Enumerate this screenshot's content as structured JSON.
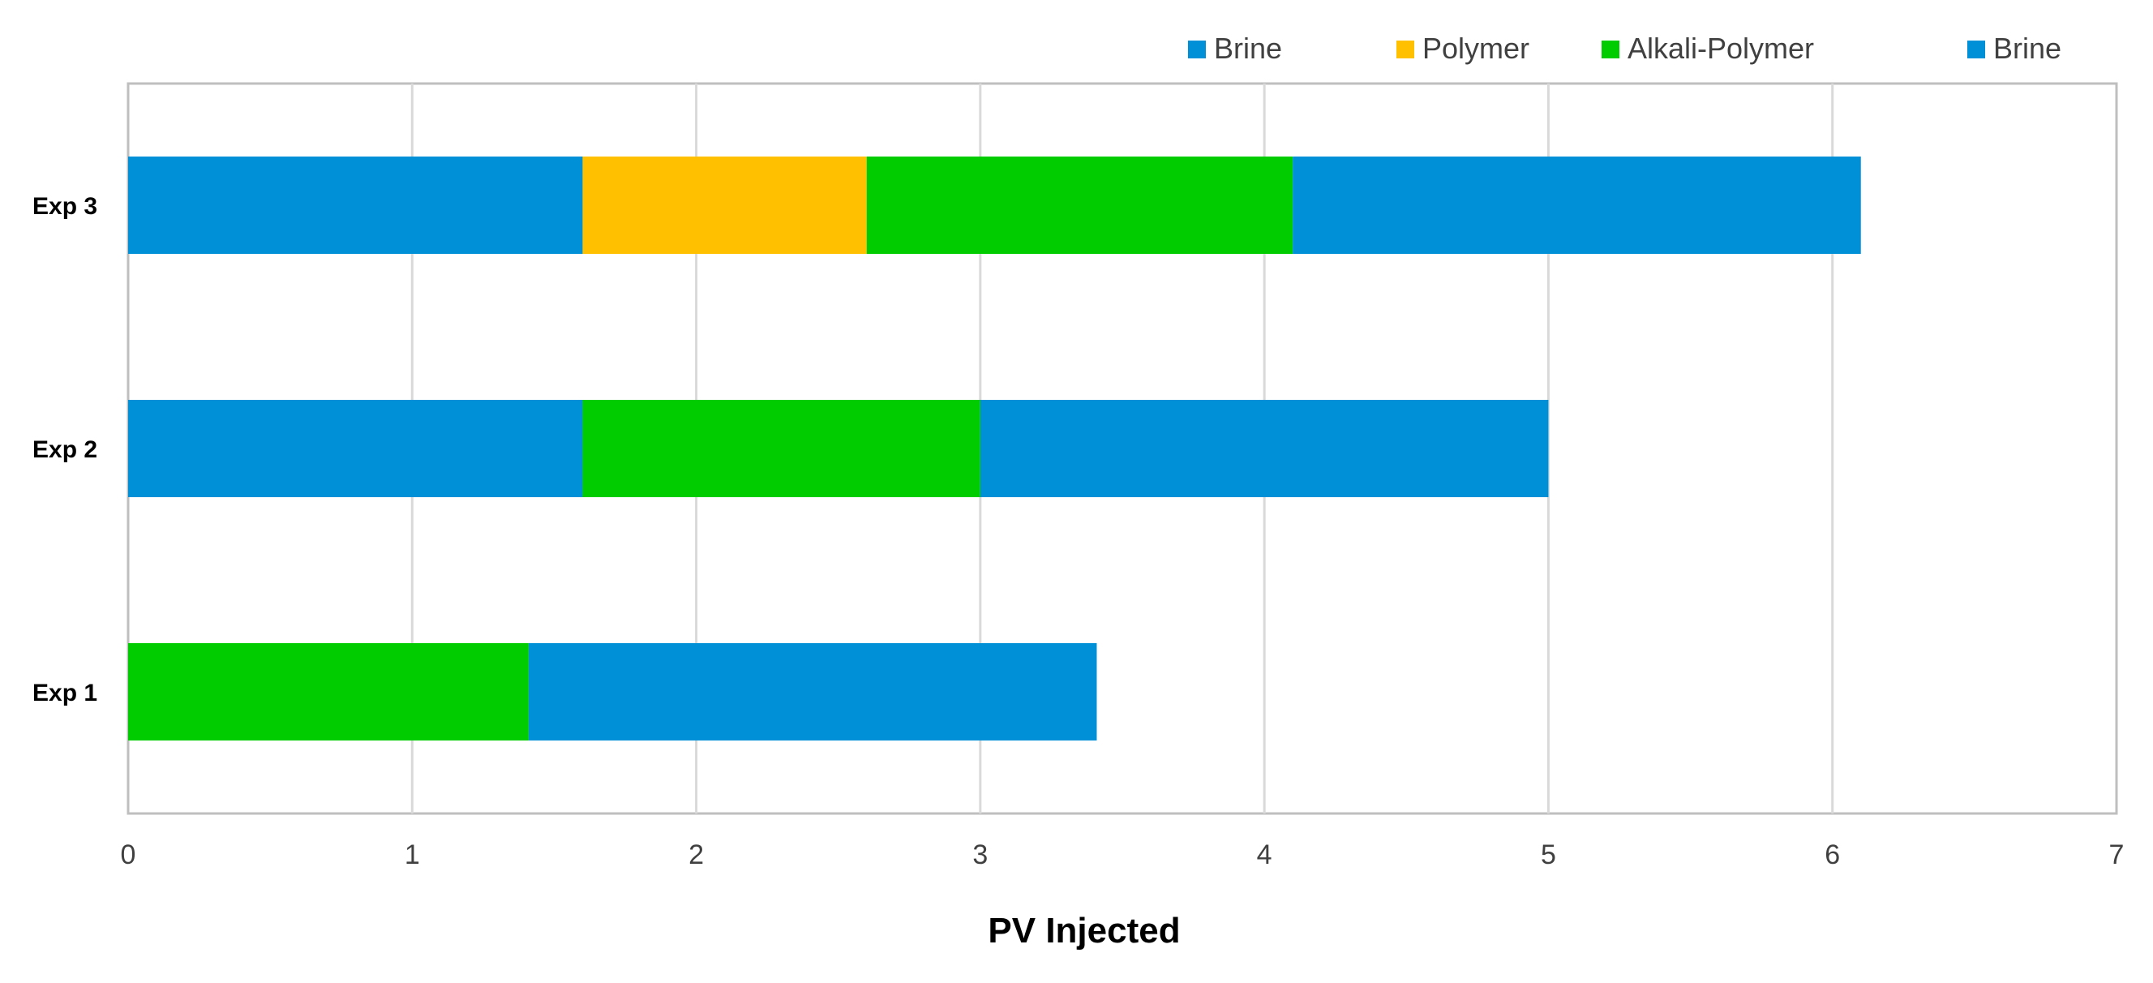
{
  "chart_data": {
    "type": "bar",
    "orientation": "horizontal",
    "stacked": true,
    "title": "",
    "xlabel": "PV Injected",
    "ylabel": "",
    "xlim": [
      0,
      7
    ],
    "x_ticks": [
      "0",
      "1",
      "2",
      "3",
      "4",
      "5",
      "6",
      "7"
    ],
    "categories": [
      "Exp 1",
      "Exp 2",
      "Exp 3"
    ],
    "grid": "vertical",
    "legend": {
      "position": "top-right",
      "entries": [
        {
          "label": "Brine",
          "color": "#0090D8"
        },
        {
          "label": "Polymer",
          "color": "#FFC000"
        },
        {
          "label": "Alkali-Polymer",
          "color": "#00CC00"
        },
        {
          "label": "Brine",
          "color": "#0090D8"
        }
      ]
    },
    "bars": [
      {
        "category": "Exp 1",
        "segments": [
          {
            "name": "Alkali-Polymer",
            "start": 0,
            "end": 1.41,
            "color": "#00CC00"
          },
          {
            "name": "Brine",
            "start": 1.41,
            "end": 3.41,
            "color": "#0090D8"
          }
        ]
      },
      {
        "category": "Exp 2",
        "segments": [
          {
            "name": "Brine",
            "start": 0,
            "end": 1.6,
            "color": "#0090D8"
          },
          {
            "name": "Alkali-Polymer",
            "start": 1.6,
            "end": 3.0,
            "color": "#00CC00"
          },
          {
            "name": "Brine",
            "start": 3.0,
            "end": 5.0,
            "color": "#0090D8"
          }
        ]
      },
      {
        "category": "Exp 3",
        "segments": [
          {
            "name": "Brine",
            "start": 0,
            "end": 1.6,
            "color": "#0090D8"
          },
          {
            "name": "Polymer",
            "start": 1.6,
            "end": 2.6,
            "color": "#FFC000"
          },
          {
            "name": "Alkali-Polymer",
            "start": 2.6,
            "end": 4.1,
            "color": "#00CC00"
          },
          {
            "name": "Brine",
            "start": 4.1,
            "end": 6.1,
            "color": "#0090D8"
          }
        ]
      }
    ]
  },
  "colors": {
    "grid": "#D9D9D9",
    "axis": "#BFBFBF",
    "text": "#404040"
  }
}
